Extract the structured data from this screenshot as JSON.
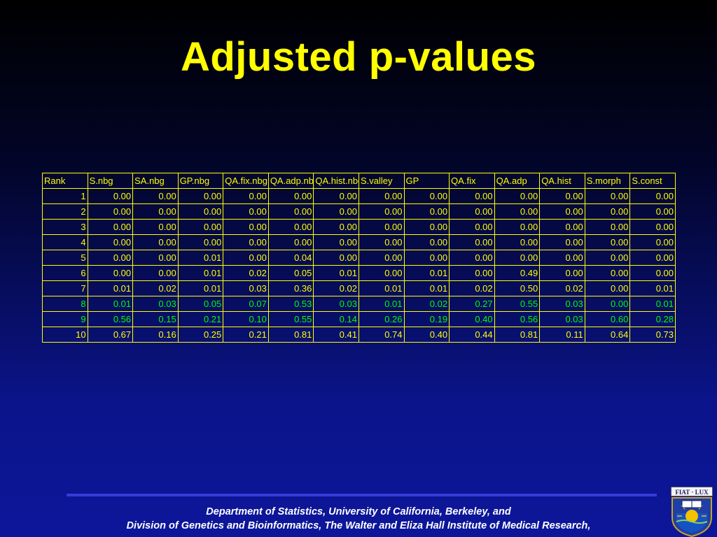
{
  "title": "Adjusted p-values",
  "table": {
    "headers": [
      "Rank",
      "S.nbg",
      "SA.nbg",
      "GP.nbg",
      "QA.fix.nbg",
      "QA.adp.nbg",
      "QA.hist.nbg",
      "S.valley",
      "GP",
      "QA.fix",
      "QA.adp",
      "QA.hist",
      "S.morph",
      "S.const"
    ],
    "rows": [
      [
        "1",
        "0.00",
        "0.00",
        "0.00",
        "0.00",
        "0.00",
        "0.00",
        "0.00",
        "0.00",
        "0.00",
        "0.00",
        "0.00",
        "0.00",
        "0.00"
      ],
      [
        "2",
        "0.00",
        "0.00",
        "0.00",
        "0.00",
        "0.00",
        "0.00",
        "0.00",
        "0.00",
        "0.00",
        "0.00",
        "0.00",
        "0.00",
        "0.00"
      ],
      [
        "3",
        "0.00",
        "0.00",
        "0.00",
        "0.00",
        "0.00",
        "0.00",
        "0.00",
        "0.00",
        "0.00",
        "0.00",
        "0.00",
        "0.00",
        "0.00"
      ],
      [
        "4",
        "0.00",
        "0.00",
        "0.00",
        "0.00",
        "0.00",
        "0.00",
        "0.00",
        "0.00",
        "0.00",
        "0.00",
        "0.00",
        "0.00",
        "0.00"
      ],
      [
        "5",
        "0.00",
        "0.00",
        "0.01",
        "0.00",
        "0.04",
        "0.00",
        "0.00",
        "0.00",
        "0.00",
        "0.00",
        "0.00",
        "0.00",
        "0.00"
      ],
      [
        "6",
        "0.00",
        "0.00",
        "0.01",
        "0.02",
        "0.05",
        "0.01",
        "0.00",
        "0.01",
        "0.00",
        "0.49",
        "0.00",
        "0.00",
        "0.00"
      ],
      [
        "7",
        "0.01",
        "0.02",
        "0.01",
        "0.03",
        "0.36",
        "0.02",
        "0.01",
        "0.01",
        "0.02",
        "0.50",
        "0.02",
        "0.00",
        "0.01"
      ],
      [
        "8",
        "0.01",
        "0.03",
        "0.05",
        "0.07",
        "0.53",
        "0.03",
        "0.01",
        "0.02",
        "0.27",
        "0.55",
        "0.03",
        "0.00",
        "0.01"
      ],
      [
        "9",
        "0.56",
        "0.15",
        "0.21",
        "0.10",
        "0.55",
        "0.14",
        "0.26",
        "0.19",
        "0.40",
        "0.56",
        "0.03",
        "0.60",
        "0.28"
      ],
      [
        "10",
        "0.67",
        "0.16",
        "0.25",
        "0.21",
        "0.81",
        "0.41",
        "0.74",
        "0.40",
        "0.44",
        "0.81",
        "0.11",
        "0.64",
        "0.73"
      ]
    ],
    "highlighted_rows": [
      8,
      9
    ]
  },
  "footer": {
    "line1": "Department of Statistics, University of California, Berkeley,  and",
    "line2": "Division of Genetics and Bioinformatics, The Walter and Eliza Hall Institute of Medical Research,"
  },
  "logo": {
    "text": "FIAT LUX",
    "icon": "berkeley-seal-icon"
  },
  "colors": {
    "title": "#ffff00",
    "table_text": "#ffff00",
    "highlight_text": "#00ff00",
    "footer_text": "#ffffff",
    "rule": "#3a3ad8"
  }
}
